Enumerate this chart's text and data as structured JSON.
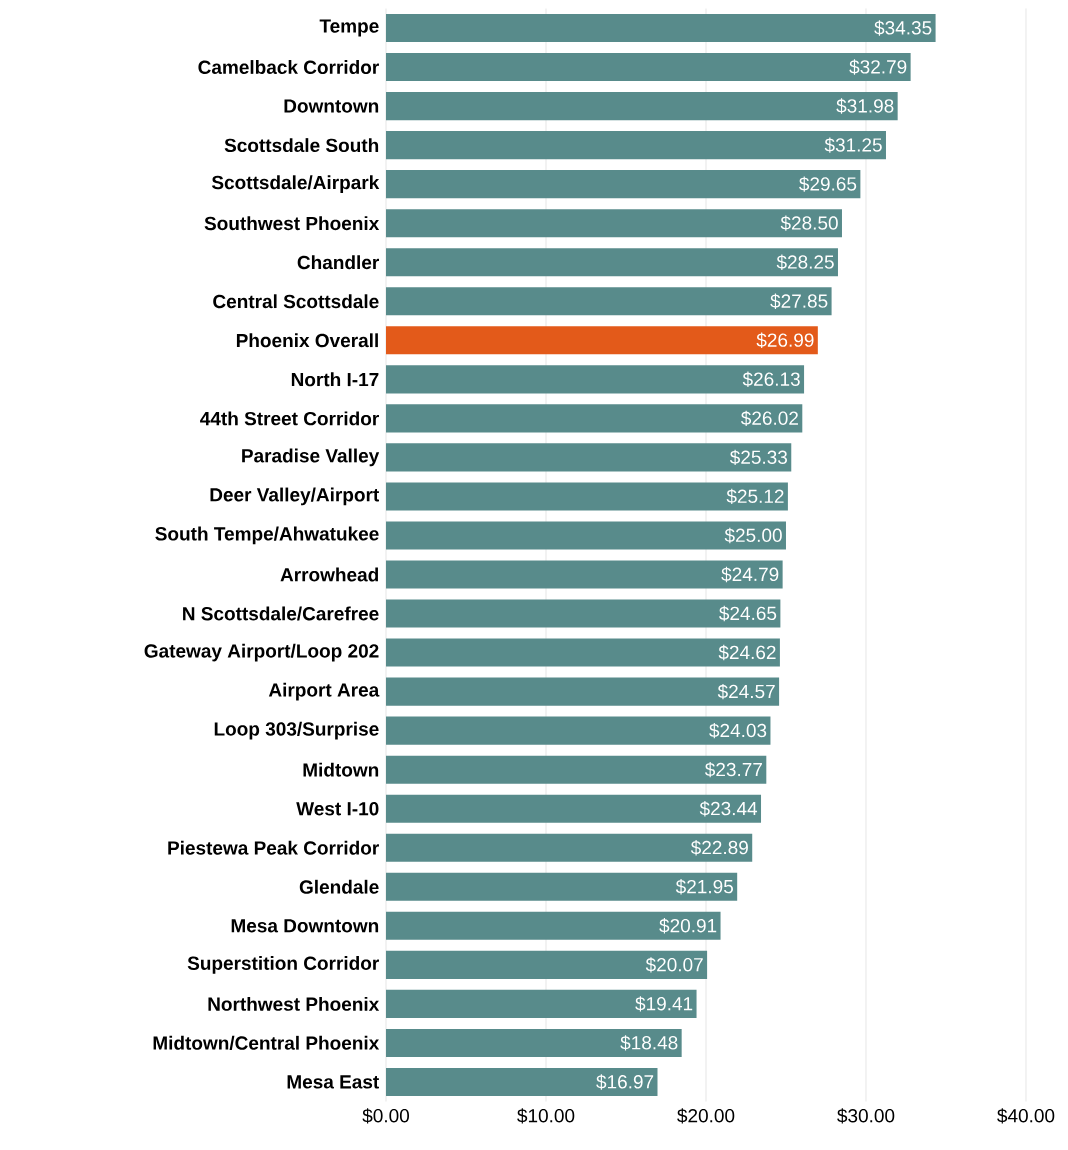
{
  "chart_data": {
    "type": "bar",
    "orientation": "horizontal",
    "categories": [
      "Tempe",
      "Camelback Corridor",
      "Downtown",
      "Scottsdale South",
      "Scottsdale/Airpark",
      "Southwest Phoenix",
      "Chandler",
      "Central Scottsdale",
      "Phoenix Overall",
      "North I-17",
      "44th Street Corridor",
      "Paradise Valley",
      "Deer Valley/Airport",
      "South Tempe/Ahwatukee",
      "Arrowhead",
      "N Scottsdale/Carefree",
      "Gateway Airport/Loop 202",
      "Airport Area",
      "Loop 303/Surprise",
      "Midtown",
      "West I-10",
      "Piestewa Peak Corridor",
      "Glendale",
      "Mesa Downtown",
      "Superstition Corridor",
      "Northwest Phoenix",
      "Midtown/Central Phoenix",
      "Mesa East"
    ],
    "values": [
      34.35,
      32.79,
      31.98,
      31.25,
      29.65,
      28.5,
      28.25,
      27.85,
      26.99,
      26.13,
      26.02,
      25.33,
      25.12,
      25.0,
      24.79,
      24.65,
      24.62,
      24.57,
      24.03,
      23.77,
      23.44,
      22.89,
      21.95,
      20.91,
      20.07,
      19.41,
      18.48,
      16.97
    ],
    "value_labels": [
      "$34.35",
      "$32.79",
      "$31.98",
      "$31.25",
      "$29.65",
      "$28.50",
      "$28.25",
      "$27.85",
      "$26.99",
      "$26.13",
      "$26.02",
      "$25.33",
      "$25.12",
      "$25.00",
      "$24.79",
      "$24.65",
      "$24.62",
      "$24.57",
      "$24.03",
      "$23.77",
      "$23.44",
      "$22.89",
      "$21.95",
      "$20.91",
      "$20.07",
      "$19.41",
      "$18.48",
      "$16.97"
    ],
    "colors": [
      "#588b8b",
      "#588b8b",
      "#588b8b",
      "#588b8b",
      "#588b8b",
      "#588b8b",
      "#588b8b",
      "#588b8b",
      "#e35a1a",
      "#588b8b",
      "#588b8b",
      "#588b8b",
      "#588b8b",
      "#588b8b",
      "#588b8b",
      "#588b8b",
      "#588b8b",
      "#588b8b",
      "#588b8b",
      "#588b8b",
      "#588b8b",
      "#588b8b",
      "#588b8b",
      "#588b8b",
      "#588b8b",
      "#588b8b",
      "#588b8b",
      "#588b8b"
    ],
    "xlim": [
      0,
      40
    ],
    "xticks": [
      {
        "value": 0,
        "label": "$0.00"
      },
      {
        "value": 10,
        "label": "$10.00"
      },
      {
        "value": 20,
        "label": "$20.00"
      },
      {
        "value": 30,
        "label": "$30.00"
      },
      {
        "value": 40,
        "label": "$40.00"
      }
    ],
    "grid": "x"
  }
}
